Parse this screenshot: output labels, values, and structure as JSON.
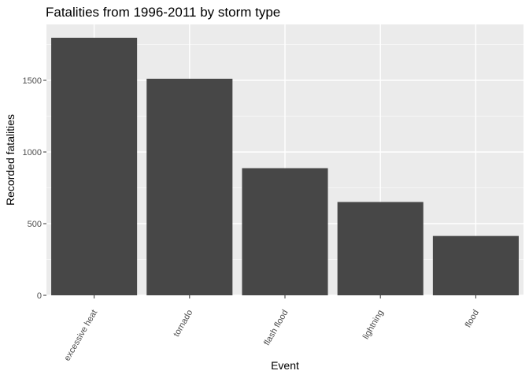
{
  "chart_data": {
    "type": "bar",
    "title": "Fatalities from 1996-2011 by storm type",
    "xlabel": "Event",
    "ylabel": "Recorded fatalities",
    "categories": [
      "excessive heat",
      "tornado",
      "flash flood",
      "lightning",
      "flood"
    ],
    "values": [
      1797,
      1511,
      887,
      651,
      414
    ],
    "ylim": [
      0,
      1890
    ],
    "yticks": [
      0,
      500,
      1000,
      1500
    ],
    "ytick_labels": [
      "0",
      "500",
      "1000",
      "1500"
    ],
    "grid": true,
    "legend": "none",
    "colors": {
      "bar": "#474747",
      "panel": "#ebebeb",
      "grid_major": "#ffffff",
      "grid_minor": "#f5f5f5"
    }
  }
}
